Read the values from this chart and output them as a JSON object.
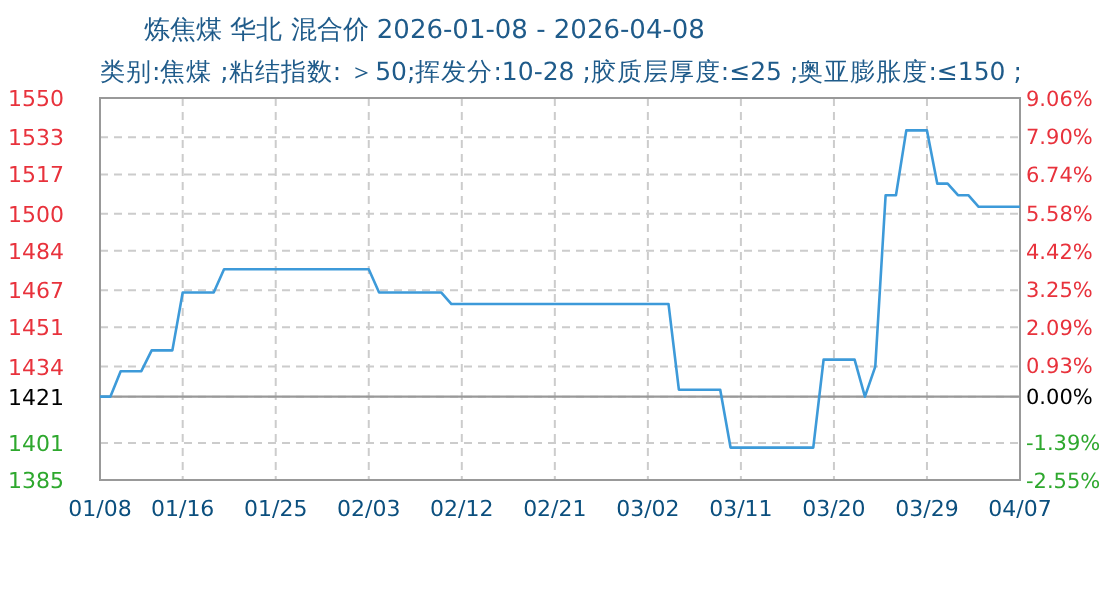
{
  "chart_data": {
    "type": "line",
    "title": "炼焦煤 华北 混合价 2026-01-08 - 2026-04-08",
    "subtitle": "类别:焦煤 ;粘结指数: ＞50;挥发分:10-28 ;胶质层厚度:≤25 ;奥亚膨胀度:≤150 ;",
    "x": [
      "2026-01-08",
      "2026-01-09",
      "2026-01-10",
      "2026-01-12",
      "2026-01-13",
      "2026-01-15",
      "2026-01-16",
      "2026-01-19",
      "2026-01-20",
      "2026-02-03",
      "2026-02-04",
      "2026-02-10",
      "2026-02-11",
      "2026-03-04",
      "2026-03-05",
      "2026-03-09",
      "2026-03-10",
      "2026-03-18",
      "2026-03-19",
      "2026-03-22",
      "2026-03-23",
      "2026-03-24",
      "2026-03-25",
      "2026-03-26",
      "2026-03-27",
      "2026-03-29",
      "2026-03-30",
      "2026-03-31",
      "2026-04-01",
      "2026-04-02",
      "2026-04-03",
      "2026-04-07"
    ],
    "series": [
      {
        "color": "#3d9ad9",
        "values": [
          1421,
          1421,
          1432,
          1432,
          1441,
          1441,
          1466,
          1466,
          1476,
          1476,
          1466,
          1466,
          1461,
          1461,
          1424,
          1424,
          1399,
          1399,
          1437,
          1437,
          1421,
          1434,
          1508,
          1508,
          1536,
          1536,
          1513,
          1513,
          1508,
          1508,
          1503,
          1503
        ]
      }
    ],
    "xlim": [
      "2026-01-08",
      "2026-04-07"
    ],
    "xticks": [
      {
        "value": "2026-01-08",
        "label": "01/08"
      },
      {
        "value": "2026-01-16",
        "label": "01/16"
      },
      {
        "value": "2026-01-25",
        "label": "01/25"
      },
      {
        "value": "2026-02-03",
        "label": "02/03"
      },
      {
        "value": "2026-02-12",
        "label": "02/12"
      },
      {
        "value": "2026-02-21",
        "label": "02/21"
      },
      {
        "value": "2026-03-02",
        "label": "03/02"
      },
      {
        "value": "2026-03-11",
        "label": "03/11"
      },
      {
        "value": "2026-03-20",
        "label": "03/20"
      },
      {
        "value": "2026-03-29",
        "label": "03/29"
      },
      {
        "value": "2026-04-07",
        "label": "04/07"
      }
    ],
    "ylim": [
      1385,
      1550
    ],
    "yticks": [
      1385,
      1401,
      1421,
      1434,
      1451,
      1467,
      1484,
      1500,
      1517,
      1533,
      1550
    ],
    "y2lim": [
      -2.55,
      9.06
    ],
    "y2ticks": [
      {
        "value": -2.55,
        "label": "-2.55%"
      },
      {
        "value": -1.39,
        "label": "-1.39%"
      },
      {
        "value": 0,
        "label": "0.00%"
      },
      {
        "value": 0.93,
        "label": "0.93%"
      },
      {
        "value": 2.09,
        "label": "2.09%"
      },
      {
        "value": 3.25,
        "label": "3.25%"
      },
      {
        "value": 4.42,
        "label": "4.42%"
      },
      {
        "value": 5.58,
        "label": "5.58%"
      },
      {
        "value": 6.74,
        "label": "6.74%"
      },
      {
        "value": 7.9,
        "label": "7.90%"
      },
      {
        "value": 9.06,
        "label": "9.06%"
      }
    ],
    "ref_lines": [
      {
        "axis": "y",
        "value": 1421,
        "color": "#999999",
        "line_style": "solid"
      }
    ],
    "grid": true,
    "marker": "none",
    "line_style": "solid"
  }
}
